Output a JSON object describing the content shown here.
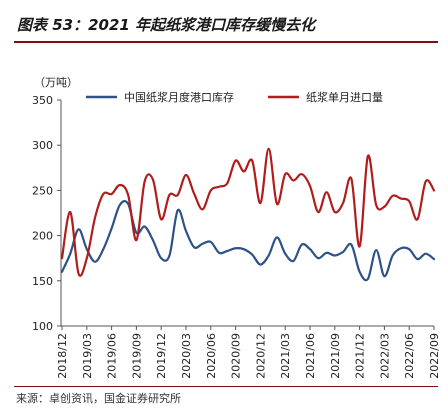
{
  "title": "图表 53：2021 年起纸浆港口库存缓慢去化",
  "source": "来源：卓创资讯，国金证券研究所",
  "chart_data": {
    "type": "line",
    "title": "图表 53：2021 年起纸浆港口库存缓慢去化",
    "ylabel": "（万吨）",
    "xlabel": "",
    "ylim": [
      100,
      350
    ],
    "yticks": [
      100,
      150,
      200,
      250,
      300,
      350
    ],
    "x_tick_labels": [
      "2018/12",
      "2019/03",
      "2019/06",
      "2019/09",
      "2019/12",
      "2020/03",
      "2020/06",
      "2020/09",
      "2020/12",
      "2021/03",
      "2021/06",
      "2021/09",
      "2021/12",
      "2022/03",
      "2022/06",
      "2022/09"
    ],
    "grid": false,
    "legend": "top",
    "x": [
      "2018/12",
      "2019/01",
      "2019/02",
      "2019/03",
      "2019/04",
      "2019/05",
      "2019/06",
      "2019/07",
      "2019/08",
      "2019/09",
      "2019/10",
      "2019/11",
      "2019/12",
      "2020/01",
      "2020/02",
      "2020/03",
      "2020/04",
      "2020/05",
      "2020/06",
      "2020/07",
      "2020/08",
      "2020/09",
      "2020/10",
      "2020/11",
      "2020/12",
      "2021/01",
      "2021/02",
      "2021/03",
      "2021/04",
      "2021/05",
      "2021/06",
      "2021/07",
      "2021/08",
      "2021/09",
      "2021/10",
      "2021/11",
      "2021/12",
      "2022/01",
      "2022/02",
      "2022/03",
      "2022/04",
      "2022/05",
      "2022/06",
      "2022/07",
      "2022/08",
      "2022/09"
    ],
    "series": [
      {
        "name": "中国纸浆月度港口库存",
        "color": "#2e5287",
        "values": [
          160,
          180,
          207,
          185,
          171,
          185,
          208,
          234,
          235,
          203,
          210,
          195,
          175,
          178,
          228,
          205,
          187,
          191,
          193,
          181,
          183,
          186,
          185,
          179,
          168,
          178,
          198,
          180,
          172,
          190,
          185,
          175,
          181,
          178,
          182,
          190,
          160,
          152,
          184,
          155,
          178,
          186,
          185,
          174,
          180,
          174
        ]
      },
      {
        "name": "纸浆单月进口量",
        "color": "#b11c1c",
        "values": [
          175,
          226,
          158,
          175,
          220,
          246,
          246,
          256,
          245,
          195,
          260,
          262,
          218,
          245,
          245,
          267,
          246,
          229,
          250,
          254,
          258,
          283,
          271,
          283,
          236,
          296,
          235,
          268,
          261,
          268,
          255,
          226,
          248,
          226,
          236,
          263,
          188,
          288,
          234,
          232,
          244,
          241,
          238,
          218,
          260,
          250
        ]
      }
    ]
  }
}
